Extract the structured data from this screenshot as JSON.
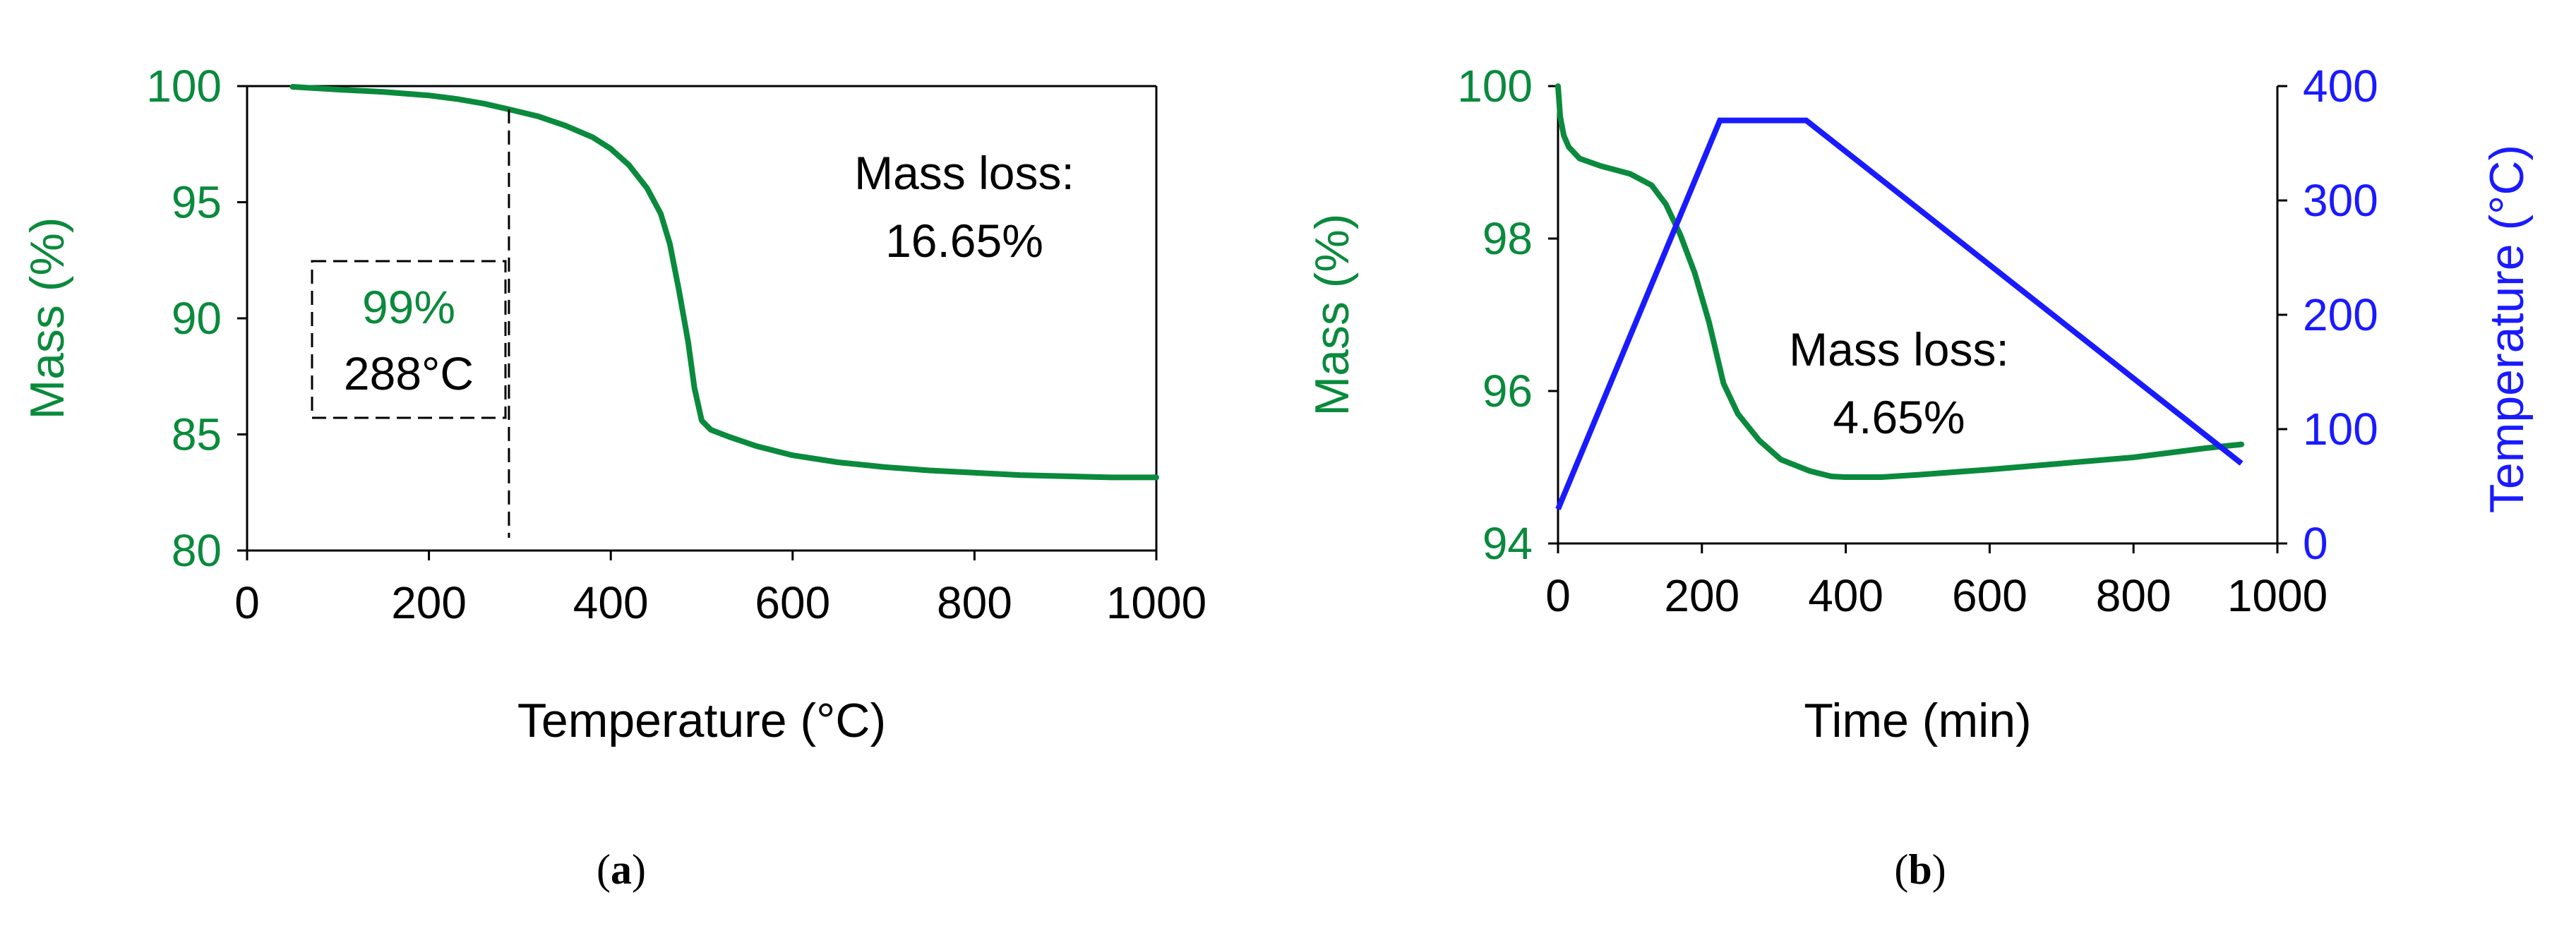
{
  "chart_data": [
    {
      "panel": "a",
      "type": "line",
      "caption": "a",
      "xlabel": "Temperature (°C)",
      "ylabel": "Mass (%)",
      "xlim": [
        0,
        1000
      ],
      "ylim": [
        80,
        100
      ],
      "xticks": [
        "0",
        "200",
        "400",
        "600",
        "800",
        "1000"
      ],
      "yticks": [
        "80",
        "85",
        "90",
        "95",
        "100"
      ],
      "series": [
        {
          "name": "Mass",
          "color": "#0a8a3c",
          "x": [
            50,
            100,
            150,
            200,
            230,
            260,
            288,
            320,
            350,
            380,
            400,
            420,
            440,
            455,
            465,
            475,
            485,
            492,
            500,
            510,
            530,
            560,
            600,
            650,
            700,
            750,
            800,
            850,
            900,
            950,
            1000
          ],
          "y": [
            99.97,
            99.85,
            99.75,
            99.6,
            99.45,
            99.25,
            99.0,
            98.7,
            98.3,
            97.8,
            97.3,
            96.6,
            95.6,
            94.5,
            93.2,
            91.2,
            89.0,
            87.0,
            85.6,
            85.2,
            84.9,
            84.5,
            84.1,
            83.8,
            83.6,
            83.45,
            83.35,
            83.25,
            83.2,
            83.15,
            83.15
          ]
        }
      ],
      "marker": {
        "x": 288,
        "y": 99,
        "label_value": "99%",
        "label_temp": "288°C"
      },
      "annotation": {
        "line1": "Mass loss:",
        "line2": "16.65%"
      }
    },
    {
      "panel": "b",
      "type": "line",
      "caption": "b",
      "xlabel": "Time (min)",
      "ylabel": "Mass (%)",
      "y2label": "Temperature (°C)",
      "xlim": [
        0,
        1000
      ],
      "ylim": [
        94,
        100
      ],
      "y2lim": [
        0,
        400
      ],
      "xticks": [
        "0",
        "200",
        "400",
        "600",
        "800",
        "1000"
      ],
      "yticks": [
        "94",
        "96",
        "98",
        "100"
      ],
      "y2ticks": [
        "0",
        "100",
        "200",
        "300",
        "400"
      ],
      "series": [
        {
          "name": "Mass",
          "axis": "left",
          "color": "#0a8a3c",
          "x": [
            0,
            3,
            8,
            15,
            30,
            60,
            100,
            130,
            150,
            170,
            190,
            210,
            230,
            250,
            280,
            310,
            350,
            380,
            400,
            450,
            500,
            600,
            700,
            800,
            900,
            950
          ],
          "y": [
            100,
            99.6,
            99.35,
            99.2,
            99.05,
            98.95,
            98.85,
            98.7,
            98.45,
            98.05,
            97.55,
            96.9,
            96.1,
            95.7,
            95.35,
            95.1,
            94.95,
            94.88,
            94.87,
            94.87,
            94.9,
            94.97,
            95.05,
            95.13,
            95.25,
            95.3
          ]
        },
        {
          "name": "Temperature",
          "axis": "right",
          "color": "#1a1aff",
          "x": [
            0,
            225,
            345,
            950
          ],
          "y": [
            30,
            370,
            370,
            70
          ]
        }
      ],
      "annotation": {
        "line1": "Mass loss:",
        "line2": "4.65%"
      }
    }
  ]
}
